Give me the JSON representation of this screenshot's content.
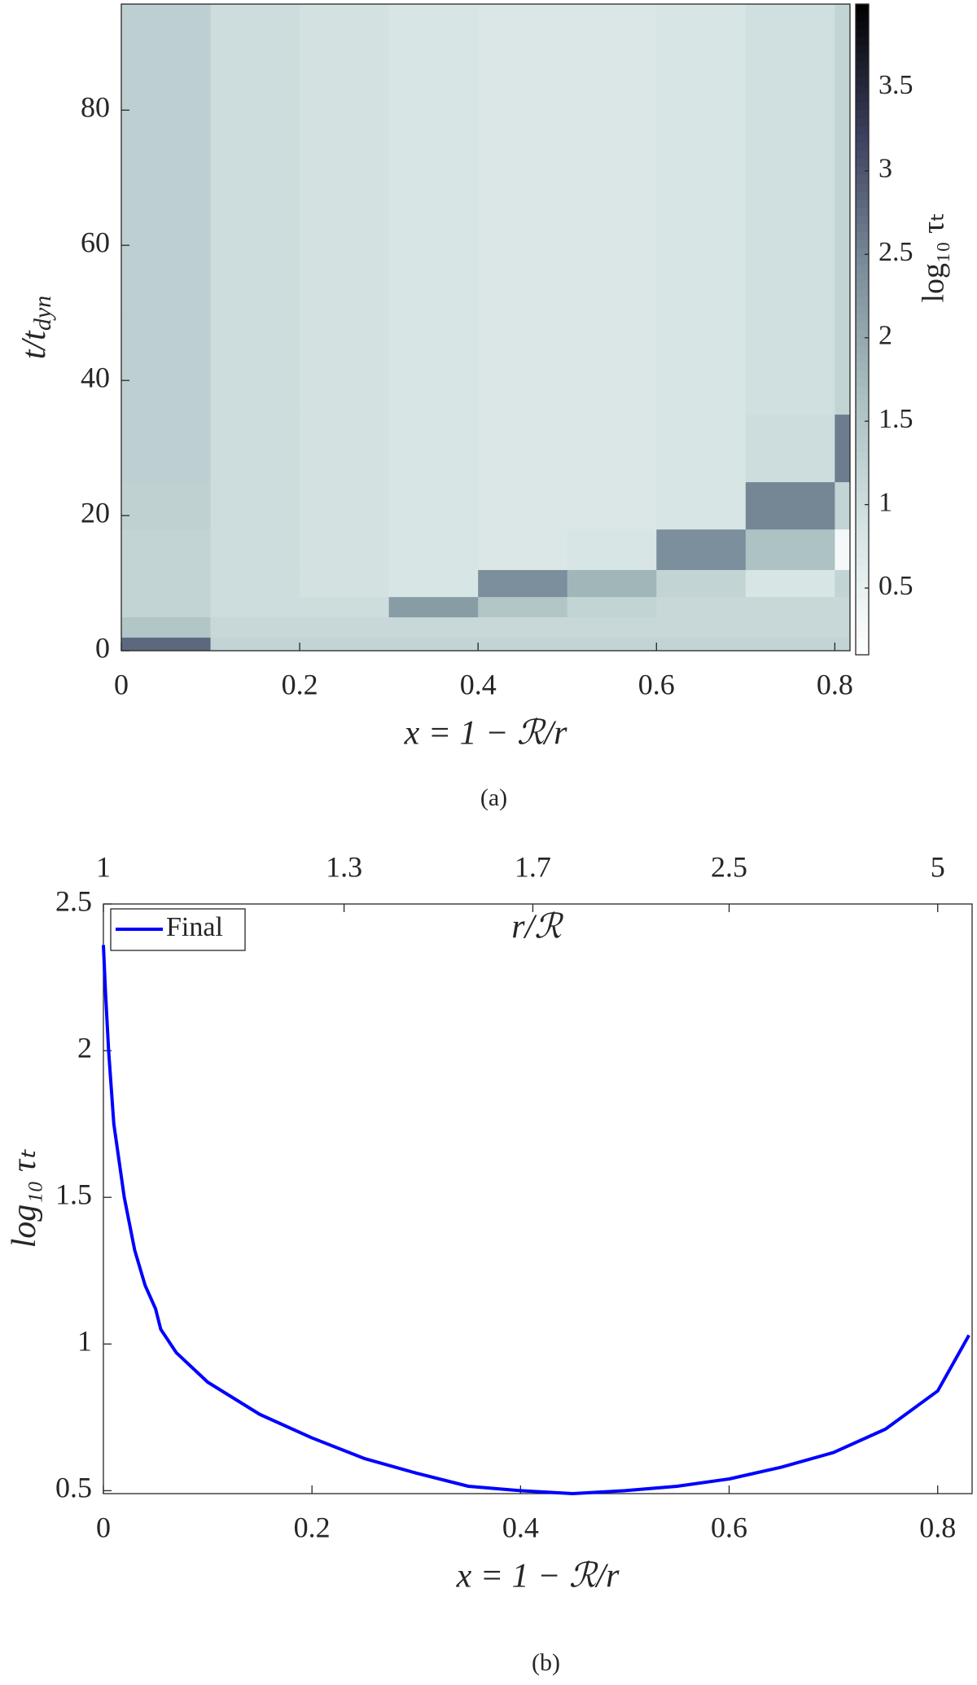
{
  "chart_data": [
    {
      "type": "heatmap",
      "caption": "(a)",
      "xlabel": "x = 1 − ℛ/r",
      "ylabel": "t/t",
      "ylabel_subscript": "dyn",
      "xlim": [
        0,
        0.817
      ],
      "ylim": [
        0,
        95.7
      ],
      "xticks": [
        0,
        0.2,
        0.4,
        0.6,
        0.8
      ],
      "yticks": [
        0,
        20,
        40,
        60,
        80
      ],
      "xbins": [
        0,
        0.1,
        0.2,
        0.3,
        0.4,
        0.5,
        0.6,
        0.7,
        0.8,
        0.817
      ],
      "ybins": [
        0,
        2,
        5,
        8,
        12,
        18,
        25,
        35,
        50,
        70,
        95.7
      ],
      "values": [
        [
          2.8,
          1.2,
          1.2,
          1.2,
          1.2,
          1.2,
          1.2,
          1.2,
          1.2
        ],
        [
          1.5,
          1.1,
          1.1,
          1.1,
          1.1,
          1.1,
          1.1,
          1.1,
          1.1
        ],
        [
          1.2,
          1.0,
          1.0,
          2.2,
          1.5,
          1.2,
          1.1,
          1.1,
          1.1
        ],
        [
          1.2,
          1.0,
          0.9,
          0.8,
          2.4,
          1.8,
          1.2,
          0.8,
          1.2
        ],
        [
          1.2,
          1.0,
          0.9,
          0.8,
          0.75,
          0.8,
          2.4,
          1.6,
          0.3
        ],
        [
          1.25,
          1.0,
          0.9,
          0.8,
          0.75,
          0.75,
          0.8,
          2.5,
          1.2
        ],
        [
          1.3,
          1.0,
          0.9,
          0.8,
          0.75,
          0.75,
          0.8,
          1.0,
          2.6
        ],
        [
          1.3,
          1.0,
          0.9,
          0.8,
          0.75,
          0.75,
          0.8,
          0.95,
          1.2
        ],
        [
          1.3,
          1.0,
          0.9,
          0.8,
          0.75,
          0.75,
          0.8,
          0.95,
          1.2
        ],
        [
          1.3,
          1.0,
          0.9,
          0.8,
          0.75,
          0.75,
          0.8,
          0.95,
          1.2
        ]
      ],
      "colorbar": {
        "label": "log₁₀ τₜ",
        "clim": [
          0.1,
          4.0
        ],
        "ticks": [
          0.5,
          1,
          1.5,
          2,
          2.5,
          3,
          3.5
        ],
        "colormap": [
          "#ffffff",
          "#d4e2e2",
          "#a9bfc0",
          "#7a8c9a",
          "#3c3f5e",
          "#000000"
        ]
      }
    },
    {
      "type": "line",
      "caption": "(b)",
      "xlabel": "x = 1 − ℛ/r",
      "ylabel": "log₁₀ τₜ",
      "x": [
        0,
        0.002,
        0.005,
        0.01,
        0.02,
        0.03,
        0.04,
        0.05,
        0.055,
        0.07,
        0.1,
        0.15,
        0.2,
        0.25,
        0.3,
        0.35,
        0.4,
        0.45,
        0.5,
        0.55,
        0.6,
        0.65,
        0.7,
        0.75,
        0.8,
        0.83
      ],
      "series": [
        {
          "name": "Final",
          "color": "#0000ff",
          "values": [
            2.36,
            2.2,
            2.0,
            1.75,
            1.5,
            1.32,
            1.2,
            1.12,
            1.05,
            0.97,
            0.87,
            0.76,
            0.68,
            0.61,
            0.56,
            0.515,
            0.5,
            0.49,
            0.5,
            0.515,
            0.54,
            0.58,
            0.63,
            0.71,
            0.84,
            1.03
          ]
        }
      ],
      "xlim": [
        0,
        0.833
      ],
      "ylim": [
        0.49,
        2.5
      ],
      "xticks": [
        0,
        0.2,
        0.4,
        0.6,
        0.8
      ],
      "yticks": [
        0.5,
        1,
        1.5,
        2,
        2.5
      ],
      "x2ticks": [
        1,
        1.3,
        1.7,
        2.5,
        5
      ],
      "x2label": "r/ℛ",
      "x2scale": "inverse",
      "legend": "upper left"
    }
  ]
}
